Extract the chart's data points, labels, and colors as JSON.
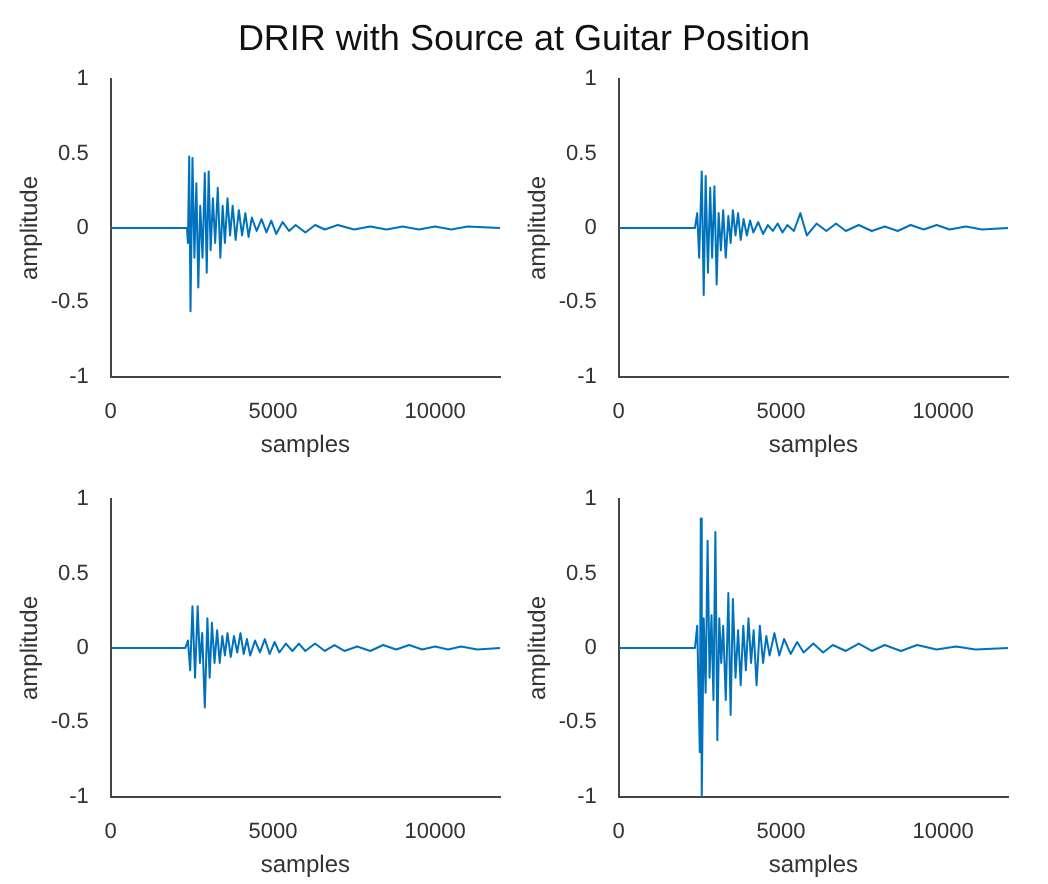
{
  "chart_data": [
    {
      "type": "line",
      "title": "DRIR with Source at Guitar Position",
      "xlabel": "samples",
      "ylabel": "amplitude",
      "color": "#0072bd",
      "xlim": [
        0,
        12000
      ],
      "ylim": [
        -1,
        1
      ],
      "xticks": [
        0,
        5000,
        10000
      ],
      "yticks": [
        -1,
        -0.5,
        0,
        0.5,
        1
      ],
      "x": [
        0,
        1000,
        2000,
        2350,
        2380,
        2420,
        2460,
        2520,
        2580,
        2640,
        2700,
        2760,
        2830,
        2900,
        2960,
        3020,
        3080,
        3150,
        3220,
        3300,
        3380,
        3450,
        3520,
        3600,
        3680,
        3760,
        3850,
        3950,
        4050,
        4150,
        4250,
        4350,
        4500,
        4650,
        4800,
        4950,
        5100,
        5300,
        5500,
        5700,
        6000,
        6300,
        6600,
        7000,
        7500,
        8000,
        8500,
        9000,
        9500,
        10000,
        10500,
        11000,
        12000
      ],
      "values": [
        0,
        0,
        0,
        0,
        -0.1,
        0.48,
        -0.56,
        0.47,
        -0.2,
        0.3,
        -0.4,
        0.15,
        -0.2,
        0.37,
        -0.3,
        0.38,
        -0.15,
        0.2,
        -0.1,
        0.27,
        -0.2,
        0.15,
        -0.1,
        0.2,
        -0.05,
        0.15,
        -0.08,
        0.12,
        -0.05,
        0.1,
        -0.06,
        0.07,
        -0.02,
        0.06,
        -0.03,
        0.05,
        -0.04,
        0.04,
        -0.02,
        0.02,
        -0.03,
        0.02,
        -0.01,
        0.02,
        -0.01,
        0.01,
        -0.01,
        0.01,
        -0.01,
        0.01,
        -0.01,
        0.01,
        0
      ]
    },
    {
      "type": "line",
      "xlabel": "samples",
      "ylabel": "amplitude",
      "color": "#0072bd",
      "xlim": [
        0,
        12000
      ],
      "ylim": [
        -1,
        1
      ],
      "xticks": [
        0,
        5000,
        10000
      ],
      "yticks": [
        -1,
        -0.5,
        0,
        0.5,
        1
      ],
      "x": [
        0,
        1000,
        2000,
        2350,
        2420,
        2480,
        2560,
        2620,
        2680,
        2750,
        2820,
        2880,
        2950,
        3020,
        3080,
        3150,
        3220,
        3300,
        3380,
        3450,
        3520,
        3600,
        3680,
        3760,
        3850,
        3950,
        4050,
        4150,
        4300,
        4450,
        4600,
        4750,
        4900,
        5050,
        5200,
        5400,
        5600,
        5800,
        6100,
        6400,
        6700,
        7000,
        7400,
        7800,
        8200,
        8600,
        9000,
        9400,
        9800,
        10200,
        10700,
        11200,
        12000
      ],
      "values": [
        0,
        0,
        0,
        0,
        0.1,
        -0.2,
        0.38,
        -0.45,
        0.35,
        -0.3,
        0.27,
        -0.2,
        0.28,
        -0.38,
        0.1,
        -0.15,
        0.12,
        -0.2,
        0.08,
        -0.1,
        0.12,
        -0.05,
        0.1,
        -0.08,
        0.06,
        -0.05,
        0.05,
        -0.03,
        0.04,
        -0.04,
        0.02,
        -0.02,
        0.03,
        -0.03,
        0.02,
        -0.02,
        0.1,
        -0.05,
        0.03,
        -0.02,
        0.03,
        -0.02,
        0.02,
        -0.02,
        0.01,
        -0.02,
        0.02,
        -0.01,
        0.02,
        -0.01,
        0.01,
        -0.01,
        0
      ]
    },
    {
      "type": "line",
      "xlabel": "samples",
      "ylabel": "amplitude",
      "color": "#0072bd",
      "xlim": [
        0,
        12000
      ],
      "ylim": [
        -1,
        1
      ],
      "xticks": [
        0,
        5000,
        10000
      ],
      "yticks": [
        -1,
        -0.5,
        0,
        0.5,
        1
      ],
      "x": [
        0,
        1000,
        2000,
        2300,
        2380,
        2450,
        2520,
        2600,
        2680,
        2750,
        2820,
        2900,
        2980,
        3050,
        3120,
        3200,
        3280,
        3360,
        3440,
        3520,
        3600,
        3700,
        3800,
        3900,
        4000,
        4100,
        4200,
        4300,
        4450,
        4600,
        4750,
        4900,
        5050,
        5200,
        5400,
        5600,
        5800,
        6000,
        6300,
        6600,
        6900,
        7200,
        7600,
        8000,
        8400,
        8800,
        9200,
        9600,
        10000,
        10400,
        10800,
        11300,
        12000
      ],
      "values": [
        0,
        0,
        0,
        0,
        0.05,
        -0.15,
        0.28,
        -0.2,
        0.28,
        -0.1,
        0.1,
        -0.4,
        0.2,
        -0.2,
        0.17,
        -0.1,
        0.12,
        -0.1,
        0.08,
        -0.05,
        0.1,
        -0.06,
        0.08,
        -0.03,
        0.1,
        -0.04,
        0.06,
        -0.05,
        0.05,
        -0.03,
        0.06,
        -0.04,
        0.04,
        -0.03,
        0.03,
        -0.02,
        0.03,
        -0.02,
        0.03,
        -0.02,
        0.02,
        -0.02,
        0.01,
        -0.02,
        0.02,
        -0.01,
        0.02,
        -0.01,
        0.01,
        -0.01,
        0.01,
        -0.01,
        0
      ]
    },
    {
      "type": "line",
      "xlabel": "samples",
      "ylabel": "amplitude",
      "color": "#0072bd",
      "xlim": [
        0,
        12000
      ],
      "ylim": [
        -1,
        1
      ],
      "xticks": [
        0,
        5000,
        10000
      ],
      "yticks": [
        -1,
        -0.5,
        0,
        0.5,
        1
      ],
      "x": [
        0,
        1000,
        2000,
        2350,
        2420,
        2500,
        2530,
        2560,
        2620,
        2680,
        2740,
        2800,
        2860,
        2920,
        2980,
        3040,
        3100,
        3160,
        3220,
        3300,
        3380,
        3450,
        3520,
        3600,
        3680,
        3760,
        3840,
        3920,
        4000,
        4080,
        4160,
        4250,
        4350,
        4450,
        4550,
        4650,
        4800,
        4950,
        5100,
        5300,
        5500,
        5700,
        6000,
        6300,
        6600,
        7000,
        7400,
        7800,
        8200,
        8700,
        9200,
        9800,
        10400,
        11000,
        12000
      ],
      "values": [
        0,
        0,
        0,
        0,
        0.15,
        -0.7,
        0.87,
        -1,
        0.2,
        -0.3,
        0.72,
        -0.2,
        0.22,
        -0.35,
        0.78,
        -0.62,
        0.2,
        -0.1,
        0.15,
        -0.35,
        0.37,
        -0.45,
        0.33,
        -0.2,
        0.12,
        -0.25,
        0.15,
        -0.15,
        0.2,
        -0.1,
        0.12,
        -0.25,
        0.15,
        -0.1,
        0.08,
        -0.05,
        0.1,
        -0.05,
        0.06,
        -0.04,
        0.04,
        -0.03,
        0.03,
        -0.03,
        0.02,
        -0.02,
        0.03,
        -0.02,
        0.02,
        -0.02,
        0.02,
        -0.01,
        0.01,
        -0.01,
        0
      ]
    }
  ]
}
